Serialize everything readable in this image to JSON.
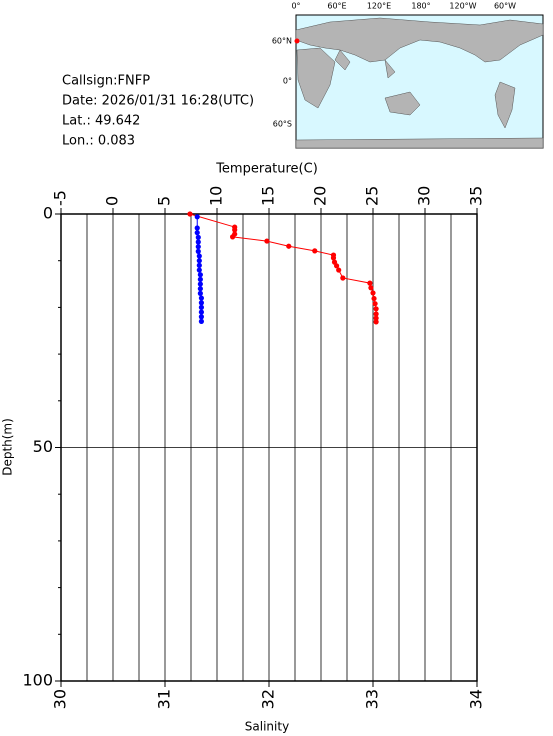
{
  "info": {
    "callsign": "Callsign:FNFP",
    "date": "Date:  2026/01/31 16:28(UTC)",
    "lat": "Lat.:   49.642",
    "lon": "Lon.:    0.083"
  },
  "map": {
    "lon_labels": [
      "0°",
      "60°E",
      "120°E",
      "180°",
      "120°W",
      "60°W"
    ],
    "lat_labels": [
      "60°N",
      "0°",
      "60°S"
    ]
  },
  "chart_data": {
    "type": "line",
    "xlabel": "Temperature(C)",
    "x2label": "Salinity",
    "ylabel": "Depth(m)",
    "xlim": [
      -5,
      35
    ],
    "xticks": [
      -5,
      0,
      5,
      10,
      15,
      20,
      25,
      30,
      35
    ],
    "x2lim": [
      30,
      34
    ],
    "x2ticks": [
      30,
      31,
      32,
      33,
      34
    ],
    "xgrid": [
      -2.5,
      0,
      2.5,
      5,
      7.5,
      10,
      12.5,
      15,
      17.5,
      20,
      22.5,
      25,
      27.5,
      30,
      32.5
    ],
    "ylim": [
      0,
      100
    ],
    "yticks": [
      0,
      50,
      100
    ],
    "ygrid": [
      50
    ],
    "y_minor_ticks": [
      10,
      20,
      30,
      40,
      60,
      70,
      80,
      90
    ],
    "y_inverted": true,
    "series": [
      {
        "color": "#ff0000",
        "axis": "x",
        "depth": [
          0,
          2.8,
          3.4,
          4.3,
          4.9,
          5.8,
          6.9,
          7.9,
          8.8,
          9.4,
          10.3,
          11.1,
          12.0,
          13.7,
          14.8,
          15.8,
          16.9,
          18.1,
          19.2,
          20.3,
          21.4,
          22.3,
          23.1
        ],
        "values": [
          7.4,
          11.7,
          11.7,
          11.7,
          11.5,
          14.8,
          16.9,
          19.4,
          21.2,
          21.2,
          21.3,
          21.5,
          21.7,
          22.1,
          24.7,
          24.8,
          25.0,
          25.1,
          25.2,
          25.3,
          25.3,
          25.3,
          25.3
        ]
      },
      {
        "color": "#0000ff",
        "axis": "x2",
        "depth": [
          0.6,
          3,
          4,
          5,
          6,
          7,
          8,
          9,
          10,
          11,
          12,
          13,
          14,
          15,
          16,
          17,
          18,
          19,
          20,
          21,
          22,
          23
        ],
        "values": [
          31.31,
          31.31,
          31.31,
          31.32,
          31.32,
          31.32,
          31.32,
          31.33,
          31.33,
          31.33,
          31.33,
          31.34,
          31.34,
          31.34,
          31.34,
          31.34,
          31.35,
          31.35,
          31.35,
          31.35,
          31.35,
          31.35
        ]
      }
    ]
  }
}
